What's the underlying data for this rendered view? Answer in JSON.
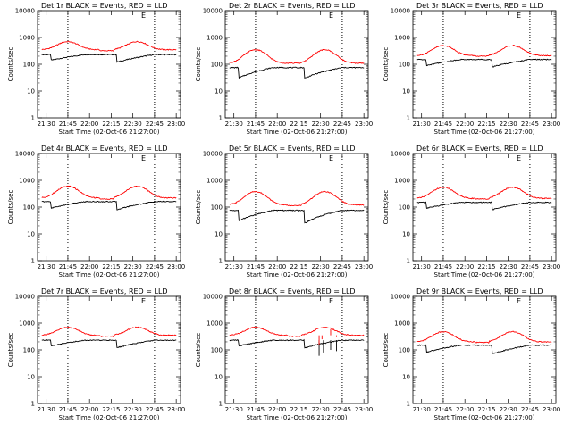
{
  "panel_titles": [
    "Det 1r BLACK = Events, RED = LLD",
    "Det 2r BLACK = Events, RED = LLD",
    "Det 3r BLACK = Events, RED = LLD",
    "Det 4r BLACK = Events, RED = LLD",
    "Det 5r BLACK = Events, RED = LLD",
    "Det 6r BLACK = Events, RED = LLD",
    "Det 7r BLACK = Events, RED = LLD",
    "Det 8r BLACK = Events, RED = LLD",
    "Det 9r BLACK = Events, RED = LLD"
  ],
  "xlabel": "Start Time (02-Oct-06 21:27:00)",
  "ylabel": "Counts/sec",
  "marker_label": "E",
  "colors": {
    "events": "#000000",
    "lld": "#ff0000",
    "axes": "#000000"
  },
  "chart_data": [
    {
      "type": "line",
      "title": "Det 1r BLACK = Events, RED = LLD",
      "x_ticks": [
        "21:30",
        "21:45",
        "22:00",
        "22:15",
        "22:30",
        "22:45",
        "23:00"
      ],
      "y_ticks": [
        "1",
        "10",
        "100",
        "1000",
        "10000"
      ],
      "ylim": [
        1,
        10000
      ],
      "log_y": true,
      "xlim": [
        -3,
        96
      ],
      "dotted_vlines": [
        18,
        78
      ],
      "series": [
        {
          "name": "Events",
          "color": "#000000",
          "base": [
            230,
            140,
            230,
            120
          ],
          "drops": []
        },
        {
          "name": "LLD",
          "color": "#ff0000",
          "base": [
            350,
            700,
            300,
            700
          ],
          "drops": []
        }
      ]
    },
    {
      "type": "line",
      "title": "Det 2r BLACK = Events, RED = LLD",
      "x_ticks": [
        "21:30",
        "21:45",
        "22:00",
        "22:15",
        "22:30",
        "22:45",
        "23:00"
      ],
      "y_ticks": [
        "1",
        "10",
        "100",
        "1000",
        "10000"
      ],
      "ylim": [
        1,
        10000
      ],
      "log_y": true,
      "xlim": [
        -3,
        96
      ],
      "dotted_vlines": [
        18,
        78
      ],
      "series": [
        {
          "name": "Events",
          "color": "#000000",
          "base": [
            75,
            30,
            75,
            30
          ],
          "drops": []
        },
        {
          "name": "LLD",
          "color": "#ff0000",
          "base": [
            110,
            350,
            90,
            350
          ],
          "drops": []
        }
      ]
    },
    {
      "type": "line",
      "title": "Det 3r BLACK = Events, RED = LLD",
      "x_ticks": [
        "21:30",
        "21:45",
        "22:00",
        "22:15",
        "22:30",
        "22:45",
        "23:00"
      ],
      "y_ticks": [
        "1",
        "10",
        "100",
        "1000",
        "10000"
      ],
      "ylim": [
        1,
        10000
      ],
      "log_y": true,
      "xlim": [
        -3,
        96
      ],
      "dotted_vlines": [
        18,
        78
      ],
      "series": [
        {
          "name": "Events",
          "color": "#000000",
          "base": [
            150,
            90,
            150,
            80
          ],
          "drops": []
        },
        {
          "name": "LLD",
          "color": "#ff0000",
          "base": [
            210,
            500,
            180,
            500
          ],
          "drops": []
        }
      ]
    },
    {
      "type": "line",
      "title": "Det 4r BLACK = Events, RED = LLD",
      "x_ticks": [
        "21:30",
        "21:45",
        "22:00",
        "22:15",
        "22:30",
        "22:45",
        "23:00"
      ],
      "y_ticks": [
        "1",
        "10",
        "100",
        "1000",
        "10000"
      ],
      "ylim": [
        1,
        10000
      ],
      "log_y": true,
      "xlim": [
        -3,
        96
      ],
      "dotted_vlines": [
        18,
        78
      ],
      "series": [
        {
          "name": "Events",
          "color": "#000000",
          "base": [
            160,
            90,
            160,
            80
          ],
          "drops": []
        },
        {
          "name": "LLD",
          "color": "#ff0000",
          "base": [
            220,
            600,
            180,
            600
          ],
          "drops": []
        }
      ]
    },
    {
      "type": "line",
      "title": "Det 5r BLACK = Events, RED = LLD",
      "x_ticks": [
        "21:30",
        "21:45",
        "22:00",
        "22:15",
        "22:30",
        "22:45",
        "23:00"
      ],
      "y_ticks": [
        "1",
        "10",
        "100",
        "1000",
        "10000"
      ],
      "ylim": [
        1,
        10000
      ],
      "log_y": true,
      "xlim": [
        -3,
        96
      ],
      "dotted_vlines": [
        18,
        78
      ],
      "series": [
        {
          "name": "Events",
          "color": "#000000",
          "base": [
            75,
            30,
            75,
            25
          ],
          "drops": []
        },
        {
          "name": "LLD",
          "color": "#ff0000",
          "base": [
            120,
            380,
            95,
            380
          ],
          "drops": []
        }
      ]
    },
    {
      "type": "line",
      "title": "Det 6r BLACK = Events, RED = LLD",
      "x_ticks": [
        "21:30",
        "21:45",
        "22:00",
        "22:15",
        "22:30",
        "22:45",
        "23:00"
      ],
      "y_ticks": [
        "1",
        "10",
        "100",
        "1000",
        "10000"
      ],
      "ylim": [
        1,
        10000
      ],
      "log_y": true,
      "xlim": [
        -3,
        96
      ],
      "dotted_vlines": [
        18,
        78
      ],
      "series": [
        {
          "name": "Events",
          "color": "#000000",
          "base": [
            150,
            90,
            150,
            80
          ],
          "drops": []
        },
        {
          "name": "LLD",
          "color": "#ff0000",
          "base": [
            210,
            550,
            180,
            550
          ],
          "drops": []
        }
      ]
    },
    {
      "type": "line",
      "title": "Det 7r BLACK = Events, RED = LLD",
      "x_ticks": [
        "21:30",
        "21:45",
        "22:00",
        "22:15",
        "22:30",
        "22:45",
        "23:00"
      ],
      "y_ticks": [
        "1",
        "10",
        "100",
        "1000",
        "10000"
      ],
      "ylim": [
        1,
        10000
      ],
      "log_y": true,
      "xlim": [
        -3,
        96
      ],
      "dotted_vlines": [
        18,
        78
      ],
      "series": [
        {
          "name": "Events",
          "color": "#000000",
          "base": [
            230,
            140,
            230,
            120
          ],
          "drops": []
        },
        {
          "name": "LLD",
          "color": "#ff0000",
          "base": [
            350,
            700,
            300,
            700
          ],
          "drops": []
        }
      ]
    },
    {
      "type": "line",
      "title": "Det 8r BLACK = Events, RED = LLD",
      "x_ticks": [
        "21:30",
        "21:45",
        "22:00",
        "22:15",
        "22:30",
        "22:45",
        "23:00"
      ],
      "y_ticks": [
        "1",
        "10",
        "100",
        "1000",
        "10000"
      ],
      "ylim": [
        1,
        10000
      ],
      "log_y": true,
      "xlim": [
        -3,
        96
      ],
      "dotted_vlines": [
        18,
        78
      ],
      "series": [
        {
          "name": "Events",
          "color": "#000000",
          "base": [
            230,
            140,
            230,
            120
          ],
          "drops": [
            [
              62,
              60
            ],
            [
              65,
              80
            ],
            [
              70,
              100
            ],
            [
              74,
              90
            ]
          ]
        },
        {
          "name": "LLD",
          "color": "#ff0000",
          "base": [
            350,
            700,
            300,
            700
          ],
          "drops": [
            [
              62,
              150
            ],
            [
              64,
              250
            ],
            [
              70,
              600
            ],
            [
              74,
              300
            ]
          ]
        }
      ]
    },
    {
      "type": "line",
      "title": "Det 9r BLACK = Events, RED = LLD",
      "x_ticks": [
        "21:30",
        "21:45",
        "22:00",
        "22:15",
        "22:30",
        "22:45",
        "23:00"
      ],
      "y_ticks": [
        "1",
        "10",
        "100",
        "1000",
        "10000"
      ],
      "ylim": [
        1,
        10000
      ],
      "log_y": true,
      "xlim": [
        -3,
        96
      ],
      "dotted_vlines": [
        18,
        78
      ],
      "series": [
        {
          "name": "Events",
          "color": "#000000",
          "base": [
            150,
            80,
            150,
            70
          ],
          "drops": []
        },
        {
          "name": "LLD",
          "color": "#ff0000",
          "base": [
            200,
            480,
            170,
            480
          ],
          "drops": []
        }
      ]
    }
  ]
}
